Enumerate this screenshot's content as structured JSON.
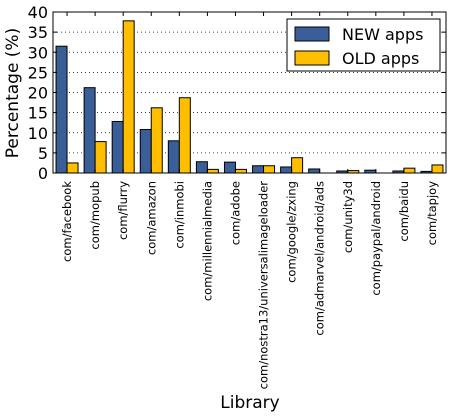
{
  "chart_data": {
    "type": "bar",
    "xlabel": "Library",
    "ylabel": "Percentage (%)",
    "ylim": [
      0,
      40
    ],
    "yticks": [
      0,
      5,
      10,
      15,
      20,
      25,
      30,
      35,
      40
    ],
    "grid": "horizontal dotted",
    "legend_position": "top-right",
    "categories": [
      "com/facebook",
      "com/mopub",
      "com/flurry",
      "com/amazon",
      "com/inmobi",
      "com/millennialmedia",
      "com/adobe",
      "com/nostra13/universalimageloader",
      "com/google/zxing",
      "com/admarvel/android/ads",
      "com/unity3d",
      "com/paypal/android",
      "com/baidu",
      "com/tapjoy"
    ],
    "series": [
      {
        "name": "NEW apps",
        "color": "#3a5f98",
        "values": [
          31.5,
          21.2,
          12.8,
          10.8,
          8.0,
          2.8,
          2.7,
          1.8,
          1.5,
          1.0,
          0.5,
          0.7,
          0.5,
          0.4
        ]
      },
      {
        "name": "OLD apps",
        "color": "#ffbf00",
        "values": [
          2.5,
          7.8,
          37.8,
          16.2,
          18.7,
          0.9,
          0.9,
          1.8,
          3.8,
          0.0,
          0.6,
          0.0,
          1.2,
          2.0
        ]
      }
    ]
  }
}
